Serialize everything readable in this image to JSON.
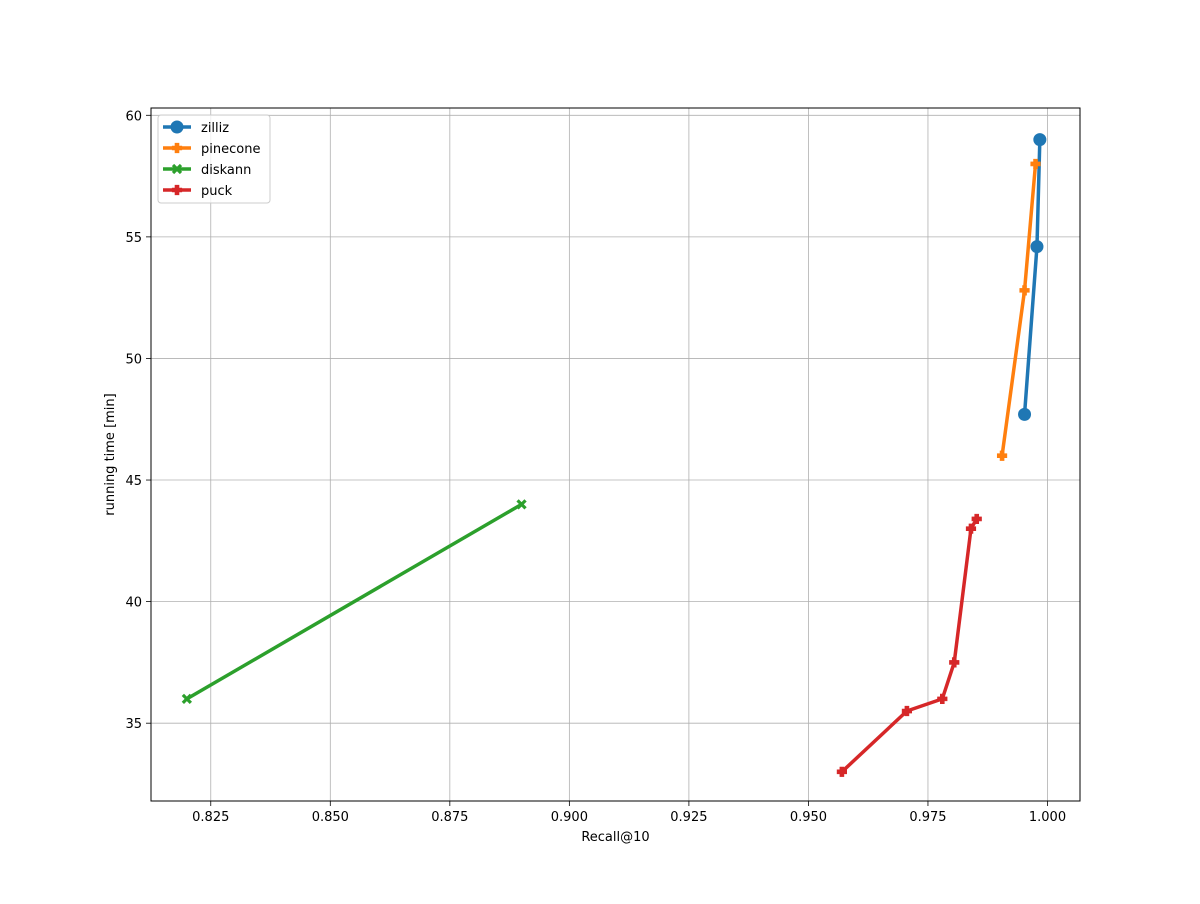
{
  "chart_data": {
    "type": "line",
    "title": "",
    "xlabel": "Recall@10",
    "ylabel": "running time [min]",
    "xlim": [
      0.8125,
      1.0068
    ],
    "ylim": [
      31.8,
      60.3
    ],
    "xticks": [
      0.825,
      0.85,
      0.875,
      0.9,
      0.925,
      0.95,
      0.975,
      1.0
    ],
    "xtick_labels": [
      "0.825",
      "0.850",
      "0.875",
      "0.900",
      "0.925",
      "0.950",
      "0.975",
      "1.000"
    ],
    "yticks": [
      35,
      40,
      45,
      50,
      55,
      60
    ],
    "ytick_labels": [
      "35",
      "40",
      "45",
      "50",
      "55",
      "60"
    ],
    "grid": true,
    "legend_position": "top-left",
    "series": [
      {
        "name": "zilliz",
        "color": "#1f77b4",
        "marker": "circle",
        "x": [
          0.9952,
          0.9978,
          0.9984
        ],
        "y": [
          47.7,
          54.6,
          59.0
        ]
      },
      {
        "name": "pinecone",
        "color": "#ff7f0e",
        "marker": "plus",
        "x": [
          0.9905,
          0.9952,
          0.9975
        ],
        "y": [
          46.0,
          52.8,
          58.0
        ]
      },
      {
        "name": "diskann",
        "color": "#2ca02c",
        "marker": "x",
        "x": [
          0.82,
          0.89
        ],
        "y": [
          36.0,
          44.0
        ]
      },
      {
        "name": "puck",
        "color": "#d62728",
        "marker": "plus",
        "x": [
          0.957,
          0.9706,
          0.978,
          0.9805,
          0.984,
          0.9852
        ],
        "y": [
          33.0,
          35.5,
          36.0,
          37.5,
          43.0,
          43.4
        ]
      }
    ]
  }
}
